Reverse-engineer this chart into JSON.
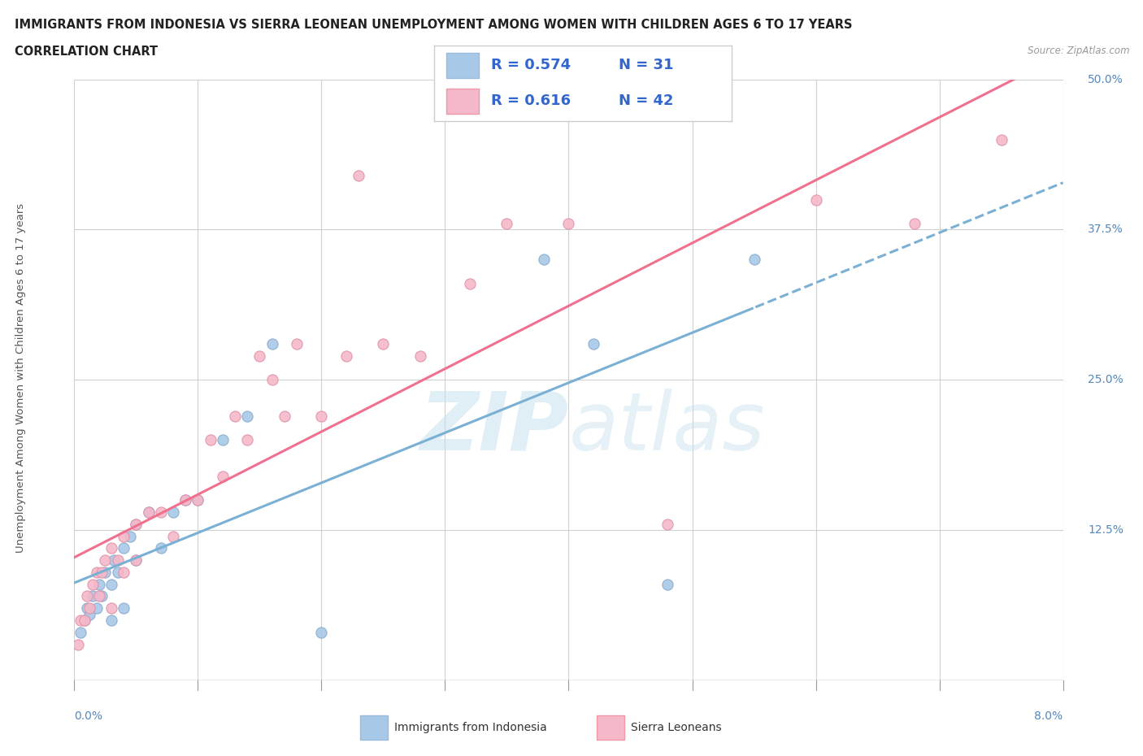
{
  "title_line1": "IMMIGRANTS FROM INDONESIA VS SIERRA LEONEAN UNEMPLOYMENT AMONG WOMEN WITH CHILDREN AGES 6 TO 17 YEARS",
  "title_line2": "CORRELATION CHART",
  "source": "Source: ZipAtlas.com",
  "series1_name": "Immigrants from Indonesia",
  "series2_name": "Sierra Leoneans",
  "series1_color": "#a8c8e8",
  "series2_color": "#f5b8c8",
  "series1_line_color": "#7ab0d4",
  "series2_line_color": "#f07090",
  "watermark": "ZIPatlas",
  "legend1_R": "0.574",
  "legend1_N": "31",
  "legend2_R": "0.616",
  "legend2_N": "42",
  "xmin": 0.0,
  "xmax": 0.08,
  "ymin": 0.0,
  "ymax": 0.5,
  "ytick_vals": [
    0.0,
    0.125,
    0.25,
    0.375,
    0.5
  ],
  "ytick_labels": [
    "0.0%",
    "12.5%",
    "25.0%",
    "37.5%",
    "50.0%"
  ],
  "x1_data": [
    0.0005,
    0.0008,
    0.001,
    0.0012,
    0.0015,
    0.0018,
    0.002,
    0.0022,
    0.0025,
    0.003,
    0.003,
    0.0032,
    0.0035,
    0.004,
    0.004,
    0.0045,
    0.005,
    0.005,
    0.006,
    0.007,
    0.008,
    0.009,
    0.01,
    0.012,
    0.014,
    0.016,
    0.02,
    0.038,
    0.042,
    0.048,
    0.055
  ],
  "y1_data": [
    0.04,
    0.05,
    0.06,
    0.055,
    0.07,
    0.06,
    0.08,
    0.07,
    0.09,
    0.05,
    0.08,
    0.1,
    0.09,
    0.06,
    0.11,
    0.12,
    0.1,
    0.13,
    0.14,
    0.11,
    0.14,
    0.15,
    0.15,
    0.2,
    0.22,
    0.28,
    0.04,
    0.35,
    0.28,
    0.08,
    0.35
  ],
  "x2_data": [
    0.0003,
    0.0005,
    0.0008,
    0.001,
    0.0012,
    0.0015,
    0.0018,
    0.002,
    0.0022,
    0.0025,
    0.003,
    0.003,
    0.0035,
    0.004,
    0.004,
    0.005,
    0.005,
    0.006,
    0.007,
    0.008,
    0.009,
    0.01,
    0.011,
    0.012,
    0.013,
    0.014,
    0.015,
    0.016,
    0.017,
    0.018,
    0.02,
    0.022,
    0.023,
    0.025,
    0.028,
    0.032,
    0.035,
    0.04,
    0.048,
    0.06,
    0.068,
    0.075
  ],
  "y2_data": [
    0.03,
    0.05,
    0.05,
    0.07,
    0.06,
    0.08,
    0.09,
    0.07,
    0.09,
    0.1,
    0.06,
    0.11,
    0.1,
    0.09,
    0.12,
    0.13,
    0.1,
    0.14,
    0.14,
    0.12,
    0.15,
    0.15,
    0.2,
    0.17,
    0.22,
    0.2,
    0.27,
    0.25,
    0.22,
    0.28,
    0.22,
    0.27,
    0.42,
    0.28,
    0.27,
    0.33,
    0.38,
    0.38,
    0.13,
    0.4,
    0.38,
    0.45
  ]
}
